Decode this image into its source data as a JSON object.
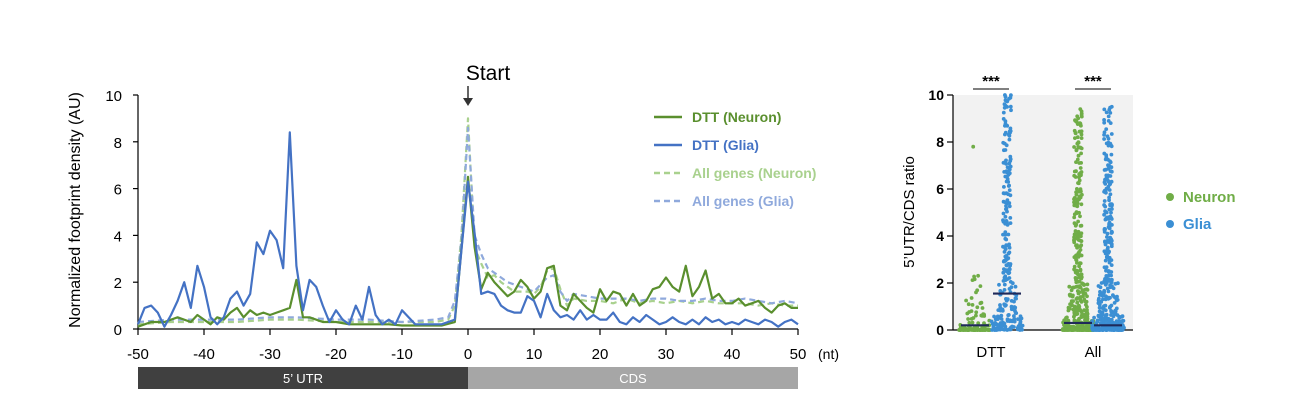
{
  "chart_data": [
    {
      "type": "line",
      "title": "",
      "xlabel": "(nt)",
      "ylabel": "Normalized footprint density (AU)",
      "xlim": [
        -50,
        50
      ],
      "ylim": [
        0,
        10
      ],
      "xticks": [
        "-50",
        "-40",
        "-30",
        "-20",
        "-10",
        "0",
        "10",
        "20",
        "30",
        "40",
        "50"
      ],
      "yticks": [
        "0",
        "2",
        "4",
        "6",
        "8",
        "10"
      ],
      "legend_position": "top-right",
      "annotation": "Start",
      "regions": [
        {
          "label": "5’ UTR",
          "from": -50,
          "to": 0,
          "color": "#404040"
        },
        {
          "label": "CDS",
          "from": 0,
          "to": 50,
          "color": "#a6a6a6"
        }
      ],
      "series": [
        {
          "name": "DTT (Neuron)",
          "color": "#5a8f2e",
          "style": "solid",
          "x": [
            -50,
            -48,
            -46,
            -44,
            -42,
            -41,
            -40,
            -39,
            -38,
            -37,
            -36,
            -35,
            -34,
            -33,
            -32,
            -31,
            -30,
            -29,
            -28,
            -27,
            -26,
            -25,
            -24,
            -22,
            -20,
            -18,
            -16,
            -14,
            -12,
            -10,
            -8,
            -6,
            -4,
            -2,
            0,
            1,
            2,
            3,
            4,
            5,
            6,
            7,
            8,
            9,
            10,
            11,
            12,
            13,
            14,
            15,
            16,
            17,
            18,
            19,
            20,
            21,
            22,
            23,
            24,
            25,
            26,
            27,
            28,
            29,
            30,
            31,
            32,
            33,
            34,
            35,
            36,
            37,
            38,
            39,
            40,
            41,
            42,
            43,
            44,
            45,
            46,
            47,
            48,
            49,
            50
          ],
          "y": [
            0.1,
            0.3,
            0.3,
            0.5,
            0.3,
            0.6,
            0.4,
            0.2,
            0.5,
            0.4,
            0.7,
            0.9,
            0.5,
            0.8,
            0.6,
            0.7,
            0.6,
            0.7,
            0.8,
            0.9,
            2.1,
            0.5,
            0.5,
            0.3,
            0.3,
            0.2,
            0.2,
            0.2,
            0.2,
            0.15,
            0.15,
            0.15,
            0.15,
            0.3,
            6.5,
            3.5,
            1.7,
            2.4,
            2.0,
            1.7,
            1.4,
            1.6,
            2.1,
            1.8,
            1.3,
            1.6,
            2.6,
            2.7,
            1.0,
            0.8,
            1.5,
            1.2,
            0.9,
            0.7,
            1.7,
            1.2,
            1.6,
            1.5,
            1.0,
            1.5,
            1.0,
            1.2,
            1.7,
            1.8,
            2.2,
            1.8,
            1.6,
            2.7,
            1.4,
            1.8,
            2.5,
            1.3,
            1.5,
            1.1,
            1.1,
            1.3,
            1.0,
            1.1,
            1.2,
            0.9,
            0.7,
            1.0,
            1.1,
            0.9,
            0.9
          ]
        },
        {
          "name": "DTT (Glia)",
          "color": "#4472c4",
          "style": "solid",
          "x": [
            -50,
            -49,
            -48,
            -47,
            -46,
            -45,
            -44,
            -43,
            -42,
            -41,
            -40,
            -39,
            -38,
            -37,
            -36,
            -35,
            -34,
            -33,
            -32,
            -31,
            -30,
            -29,
            -28,
            -27,
            -26,
            -25,
            -24,
            -23,
            -22,
            -21,
            -20,
            -19,
            -18,
            -17,
            -16,
            -15,
            -14,
            -13,
            -12,
            -11,
            -10,
            -8,
            -6,
            -4,
            -2,
            0,
            1,
            2,
            3,
            4,
            5,
            6,
            7,
            8,
            9,
            10,
            11,
            12,
            13,
            14,
            15,
            16,
            17,
            18,
            19,
            20,
            21,
            22,
            23,
            24,
            25,
            26,
            27,
            28,
            29,
            30,
            31,
            32,
            33,
            34,
            35,
            36,
            37,
            38,
            39,
            40,
            41,
            42,
            43,
            44,
            45,
            46,
            47,
            48,
            49,
            50
          ],
          "y": [
            0.2,
            0.9,
            1.0,
            0.7,
            0.1,
            0.6,
            1.2,
            2.0,
            0.9,
            2.7,
            1.8,
            0.5,
            0.2,
            0.5,
            1.3,
            1.6,
            1.0,
            1.5,
            3.7,
            3.2,
            4.2,
            3.8,
            2.6,
            8.4,
            2.7,
            0.8,
            2.1,
            1.8,
            1.0,
            0.3,
            0.8,
            0.4,
            0.2,
            1.0,
            0.4,
            1.8,
            0.6,
            0.2,
            0.4,
            0.2,
            0.8,
            0.2,
            0.2,
            0.2,
            0.4,
            6.3,
            4.1,
            1.5,
            1.6,
            1.5,
            1.0,
            0.8,
            0.7,
            0.7,
            1.4,
            1.2,
            0.5,
            1.5,
            0.8,
            0.5,
            0.6,
            0.4,
            0.8,
            0.4,
            0.6,
            0.4,
            0.4,
            0.7,
            0.3,
            0.2,
            0.5,
            0.3,
            0.6,
            0.4,
            0.2,
            0.3,
            0.5,
            0.3,
            0.2,
            0.4,
            0.2,
            0.5,
            0.3,
            0.4,
            0.2,
            0.3,
            0.2,
            0.4,
            0.3,
            0.2,
            0.4,
            0.3,
            0.1,
            0.3,
            0.4,
            0.2
          ]
        },
        {
          "name": "All genes (Neuron)",
          "color": "#a9d18e",
          "style": "dashed",
          "x": [
            -50,
            -45,
            -40,
            -35,
            -30,
            -26,
            -20,
            -15,
            -10,
            -5,
            -3,
            -2,
            -1,
            0,
            1,
            2,
            3,
            4,
            5,
            6,
            7,
            8,
            9,
            10,
            11,
            12,
            13,
            14,
            15,
            16,
            18,
            20,
            22,
            24,
            26,
            28,
            30,
            32,
            34,
            36,
            38,
            40,
            42,
            44,
            46,
            48,
            50
          ],
          "y": [
            0.2,
            0.3,
            0.3,
            0.3,
            0.4,
            0.4,
            0.3,
            0.3,
            0.3,
            0.3,
            0.4,
            1.0,
            4.0,
            9.0,
            3.5,
            2.8,
            2.2,
            2.3,
            2.0,
            1.8,
            1.6,
            1.6,
            1.6,
            1.5,
            1.8,
            2.5,
            2.6,
            1.7,
            1.0,
            1.3,
            1.2,
            1.2,
            1.1,
            1.3,
            1.1,
            1.2,
            1.1,
            1.2,
            1.1,
            1.2,
            1.1,
            1.1,
            1.1,
            1.0,
            1.1,
            1.0,
            1.0
          ]
        },
        {
          "name": "All genes (Glia)",
          "color": "#8fa9dc",
          "style": "dashed",
          "x": [
            -50,
            -45,
            -40,
            -35,
            -30,
            -26,
            -20,
            -15,
            -10,
            -5,
            -3,
            -2,
            -1,
            0,
            1,
            2,
            3,
            4,
            5,
            6,
            7,
            8,
            9,
            10,
            11,
            12,
            13,
            14,
            15,
            16,
            18,
            20,
            22,
            24,
            26,
            28,
            30,
            32,
            34,
            36,
            38,
            40,
            42,
            44,
            46,
            48,
            50
          ],
          "y": [
            0.3,
            0.4,
            0.4,
            0.4,
            0.5,
            0.5,
            0.4,
            0.4,
            0.3,
            0.4,
            0.5,
            1.2,
            3.8,
            8.6,
            4.0,
            3.2,
            2.6,
            2.4,
            2.2,
            2.0,
            1.9,
            1.8,
            1.7,
            1.6,
            1.9,
            2.2,
            2.3,
            1.6,
            1.2,
            1.5,
            1.4,
            1.3,
            1.3,
            1.3,
            1.2,
            1.3,
            1.3,
            1.2,
            1.2,
            1.3,
            1.2,
            1.2,
            1.3,
            1.2,
            1.1,
            1.2,
            1.1
          ]
        }
      ]
    },
    {
      "type": "scatter",
      "title": "",
      "xlabel": "",
      "ylabel": "5’UTR/CDS ratio",
      "ylim": [
        0,
        10
      ],
      "yticks": [
        "0",
        "2",
        "4",
        "6",
        "8",
        "10"
      ],
      "categories": [
        "DTT",
        "All"
      ],
      "significance": [
        "***",
        "***"
      ],
      "legend_position": "right",
      "series": [
        {
          "name": "Neuron",
          "color": "#70ad47",
          "medians": [
            0.2,
            0.3
          ]
        },
        {
          "name": "Glia",
          "color": "#3b8fd4",
          "medians": [
            1.55,
            0.2
          ]
        }
      ]
    }
  ]
}
